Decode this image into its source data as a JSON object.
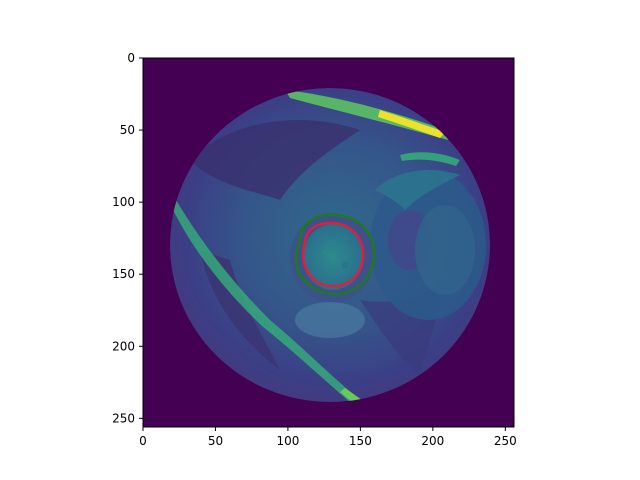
{
  "image": {
    "description_key": "mri-short-axis-cardiac-slice",
    "colormap": "viridis",
    "background_color": "#440154",
    "overlays": [
      {
        "name": "epicardium-contour",
        "color": "#1f7a1f"
      },
      {
        "name": "endocardium-contour",
        "color": "#e0203a"
      }
    ]
  },
  "axes": {
    "x_ticks": [
      "0",
      "50",
      "100",
      "150",
      "200",
      "250"
    ],
    "y_ticks": [
      "0",
      "50",
      "100",
      "150",
      "200",
      "250"
    ],
    "xlim": [
      0,
      256
    ],
    "ylim": [
      256,
      0
    ]
  }
}
